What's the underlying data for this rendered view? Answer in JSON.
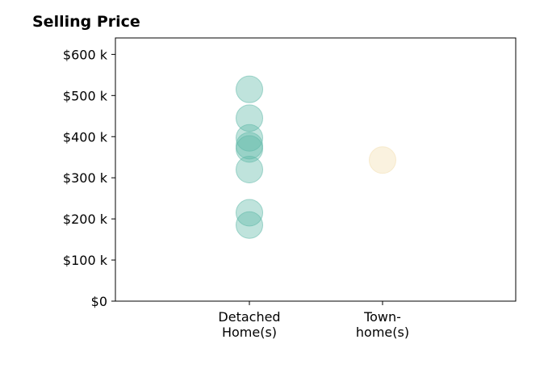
{
  "chart_data": {
    "type": "scatter",
    "title": "Selling Price",
    "xlabel": "",
    "ylabel": "",
    "categories": [
      [
        "Detached",
        "Home(s)"
      ],
      [
        "Town-",
        "home(s)"
      ]
    ],
    "ylim": [
      0,
      640000
    ],
    "yticks": [
      0,
      100000,
      200000,
      300000,
      400000,
      500000,
      600000
    ],
    "ytick_labels": [
      "$0",
      "$100 k",
      "$200 k",
      "$300 k",
      "$400 k",
      "$500 k",
      "$600 k"
    ],
    "grid": false,
    "series": [
      {
        "category": 0,
        "color": "#5fb8a8",
        "values": [
          515000,
          445000,
          397000,
          378000,
          370000,
          320000,
          215000,
          185000
        ]
      },
      {
        "category": 1,
        "color": "#f3dfb0",
        "values": [
          343000
        ]
      }
    ]
  }
}
